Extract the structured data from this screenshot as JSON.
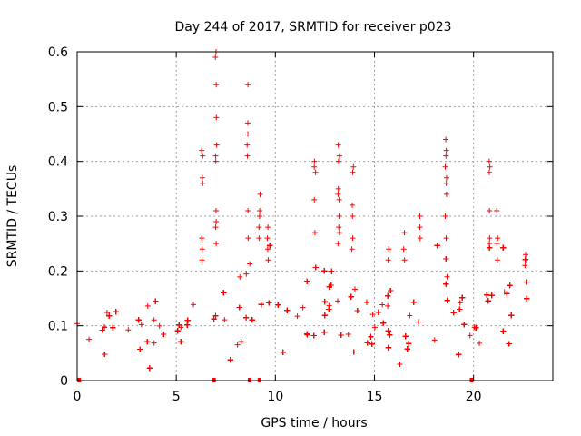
{
  "chart_data": {
    "type": "scatter",
    "title": "Day 244 of 2017, SRMTID for receiver p023",
    "xlabel": "GPS time / hours",
    "ylabel": "SRMTID / TECUs",
    "xlim": [
      0,
      24
    ],
    "ylim": [
      0,
      0.6
    ],
    "xticks": [
      0,
      5,
      10,
      15,
      20
    ],
    "yticks": [
      0,
      0.1,
      0.2,
      0.3,
      0.4,
      0.5,
      0.6
    ],
    "grid": true,
    "marker": "plus",
    "color": "#ff0000",
    "background_band": {
      "x_start": 0.0,
      "x_end": 22.75,
      "segments": [
        {
          "x_from": 0.0,
          "x_to": 5.5,
          "y_center": 0.09,
          "spread": 0.03
        },
        {
          "x_from": 5.5,
          "x_to": 9.0,
          "y_center": 0.11,
          "spread": 0.045
        },
        {
          "x_from": 9.0,
          "x_to": 11.0,
          "y_center": 0.13,
          "spread": 0.05
        },
        {
          "x_from": 11.0,
          "x_to": 14.0,
          "y_center": 0.11,
          "spread": 0.05
        },
        {
          "x_from": 14.0,
          "x_to": 18.0,
          "y_center": 0.09,
          "spread": 0.04
        },
        {
          "x_from": 18.0,
          "x_to": 22.75,
          "y_center": 0.12,
          "spread": 0.05
        }
      ]
    },
    "outlier_columns": [
      {
        "x": 6.3,
        "values": [
          0.36,
          0.37,
          0.41,
          0.42,
          0.26,
          0.24,
          0.22
        ]
      },
      {
        "x": 7.0,
        "values": [
          0.59,
          0.6,
          0.54,
          0.48,
          0.43,
          0.41,
          0.4,
          0.31,
          0.29,
          0.28,
          0.25
        ]
      },
      {
        "x": 8.6,
        "values": [
          0.54,
          0.47,
          0.45,
          0.43,
          0.41,
          0.31,
          0.26
        ]
      },
      {
        "x": 9.2,
        "values": [
          0.34,
          0.31,
          0.3,
          0.28,
          0.26
        ]
      },
      {
        "x": 12.0,
        "values": [
          0.4,
          0.39,
          0.38,
          0.33,
          0.27
        ]
      },
      {
        "x": 13.2,
        "values": [
          0.43,
          0.41,
          0.4,
          0.35,
          0.34,
          0.33,
          0.3,
          0.28,
          0.27,
          0.25
        ]
      },
      {
        "x": 13.9,
        "values": [
          0.39,
          0.38,
          0.32,
          0.3,
          0.26,
          0.24
        ]
      },
      {
        "x": 18.6,
        "values": [
          0.44,
          0.42,
          0.41,
          0.39,
          0.37,
          0.36,
          0.34,
          0.3,
          0.26
        ]
      },
      {
        "x": 20.8,
        "values": [
          0.4,
          0.39,
          0.38,
          0.31,
          0.26,
          0.25
        ]
      },
      {
        "x": 21.2,
        "values": [
          0.31,
          0.26,
          0.25,
          0.22
        ]
      },
      {
        "x": 9.6,
        "values": [
          0.28,
          0.26,
          0.24,
          0.22
        ]
      },
      {
        "x": 15.7,
        "values": [
          0.24,
          0.22
        ]
      },
      {
        "x": 16.5,
        "values": [
          0.27,
          0.24,
          0.22
        ]
      },
      {
        "x": 17.3,
        "values": [
          0.3,
          0.28,
          0.26
        ]
      },
      {
        "x": 22.6,
        "values": [
          0.23,
          0.21
        ]
      }
    ],
    "gap_markers_x": [
      0.1,
      6.9,
      8.7,
      9.2,
      19.9
    ]
  }
}
